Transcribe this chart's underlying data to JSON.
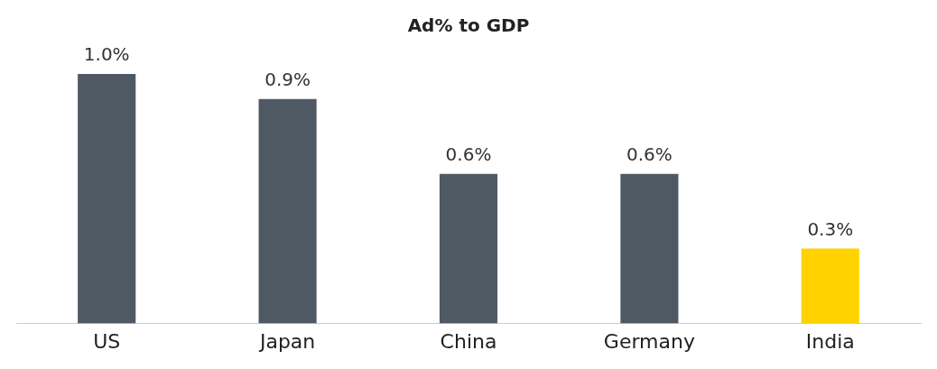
{
  "chart_data": {
    "type": "bar",
    "title": "Ad% to GDP",
    "categories": [
      "US",
      "Japan",
      "China",
      "Germany",
      "India"
    ],
    "values": [
      1.0,
      0.9,
      0.6,
      0.6,
      0.3
    ],
    "colors": [
      "#4f5963",
      "#4f5963",
      "#4f5963",
      "#4f5963",
      "#ffd200"
    ],
    "value_labels": [
      "1.0%",
      "0.9%",
      "0.6%",
      "0.6%",
      "0.3%"
    ],
    "grid": false,
    "legend": false
  }
}
